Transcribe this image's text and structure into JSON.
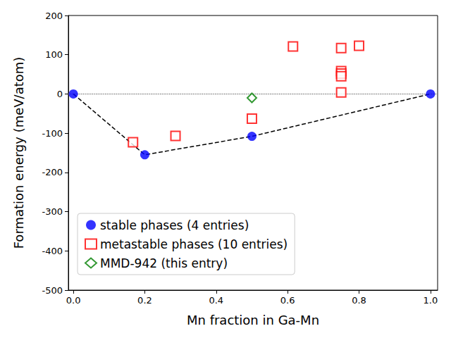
{
  "chart_data": {
    "type": "scatter",
    "xlabel": "Mn fraction in Ga-Mn",
    "ylabel": "Formation energy (meV/atom)",
    "xlim": [
      -0.014,
      1.02
    ],
    "xticks": [
      {
        "value": 0,
        "label": "0.0"
      },
      0.2,
      0.4,
      0.6,
      0.8,
      {
        "value": 1,
        "label": "1.0"
      }
    ],
    "ylim": [
      -500,
      200
    ],
    "yticks": [
      -500,
      -400,
      -300,
      -200,
      -100,
      0,
      100,
      200
    ],
    "grid": false,
    "legend": "lower left",
    "series": [
      {
        "name": "stable phases (4 entries)",
        "color": "#0000ff",
        "marker": "circle",
        "x": [
          0,
          0.2,
          0.5,
          1.0
        ],
        "values": [
          0,
          -155,
          -108,
          0
        ]
      },
      {
        "name": "metastable phases (10 entries)",
        "color": "#ff0000",
        "marker": "square-open",
        "x": [
          0.167,
          0.286,
          0.5,
          0.615,
          0.75,
          0.75,
          0.75,
          0.75,
          0.75,
          0.8
        ],
        "values": [
          -123,
          -107,
          -63,
          121,
          117,
          58,
          52,
          45,
          4,
          123
        ]
      },
      {
        "name": "MMD-942 (this entry)",
        "color": "#008000",
        "marker": "diamond-open",
        "x": [
          0.5
        ],
        "values": [
          -10
        ]
      }
    ],
    "hull": {
      "color": "#000000",
      "line_style": "dashed",
      "x": [
        0,
        0.2,
        0.5,
        1.0
      ],
      "values": [
        0,
        -155,
        -108,
        0
      ]
    },
    "reference_lines": [
      {
        "y": 0,
        "color": "#808080",
        "line_style": "dotted"
      }
    ]
  }
}
